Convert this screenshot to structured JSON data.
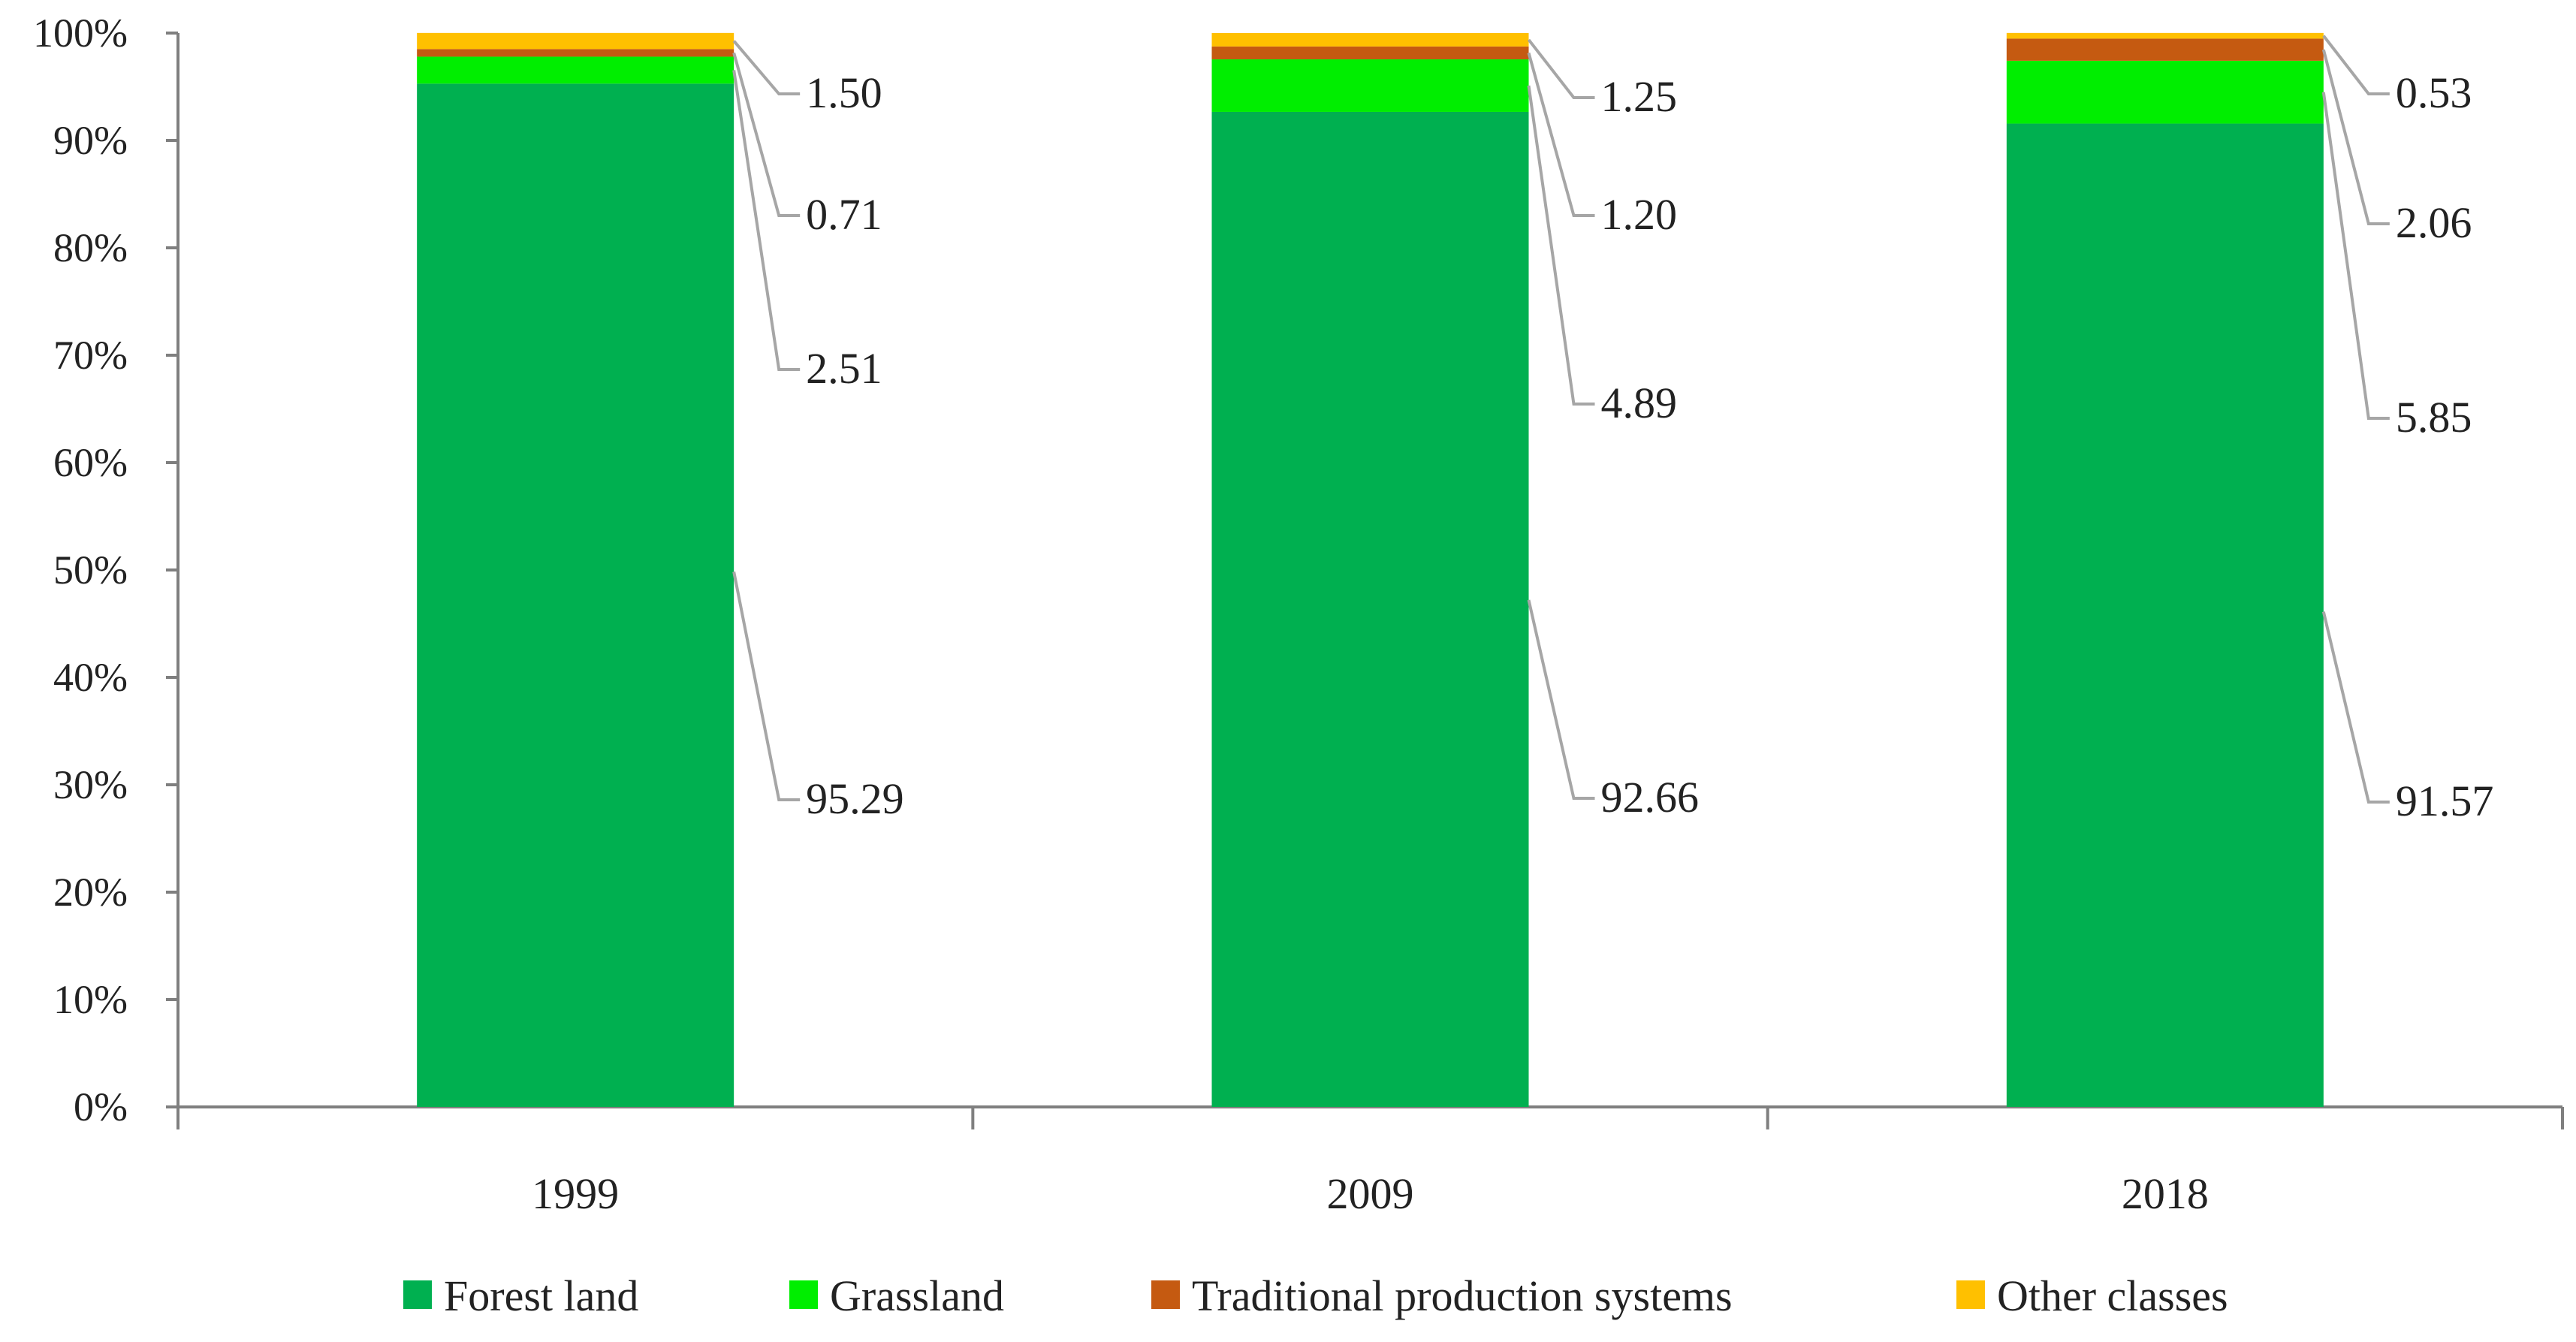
{
  "chart_data": {
    "type": "bar",
    "stacked": true,
    "percent_stacked": true,
    "categories": [
      "1999",
      "2009",
      "2018"
    ],
    "series": [
      {
        "name": "Forest land",
        "color": "#00b050",
        "values": [
          95.29,
          92.66,
          91.57
        ]
      },
      {
        "name": "Grassland",
        "color": "#00ee00",
        "values": [
          2.51,
          4.89,
          5.85
        ]
      },
      {
        "name": "Traditional production systems",
        "color": "#c55a11",
        "values": [
          0.71,
          1.2,
          2.06
        ]
      },
      {
        "name": "Other classes",
        "color": "#ffc000",
        "values": [
          1.5,
          1.25,
          0.53
        ]
      }
    ],
    "data_labels": [
      [
        "95.29",
        "92.66",
        "91.57"
      ],
      [
        "2.51",
        "4.89",
        "5.85"
      ],
      [
        "0.71",
        "1.20",
        "2.06"
      ],
      [
        "1.50",
        "1.25",
        "0.53"
      ]
    ],
    "yticks": [
      "0%",
      "10%",
      "20%",
      "30%",
      "40%",
      "50%",
      "60%",
      "70%",
      "80%",
      "90%",
      "100%"
    ],
    "ylim": [
      0,
      100
    ],
    "title": "",
    "xlabel": "",
    "ylabel": "",
    "grid": false,
    "legend_position": "bottom"
  }
}
